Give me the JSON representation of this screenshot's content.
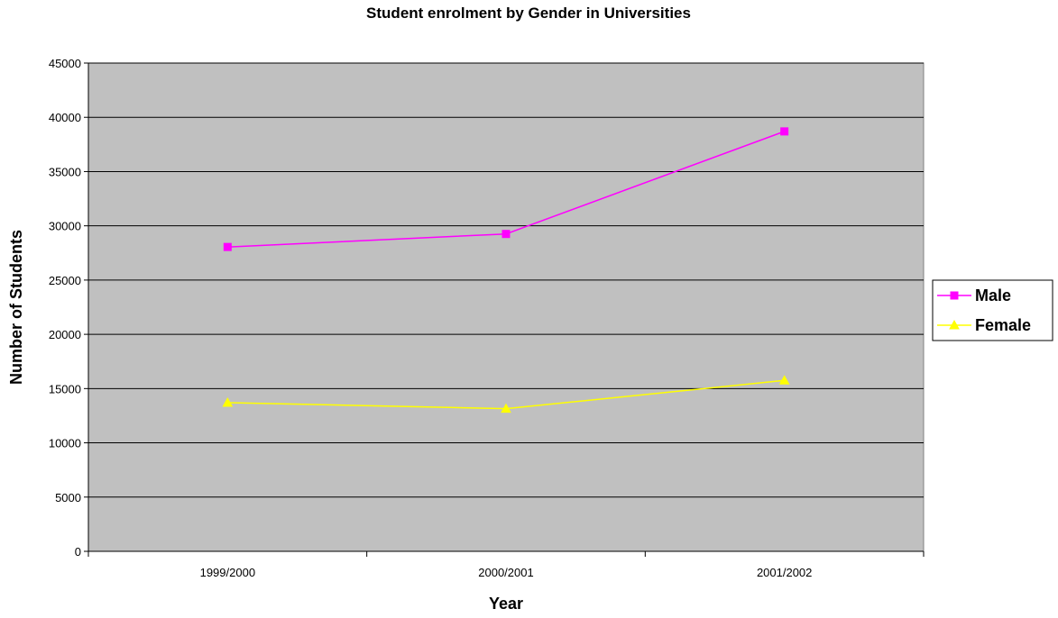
{
  "colors": {
    "plot_background": "#c0c0c0",
    "grid": "#000000",
    "male": "#ff00ff",
    "female": "#ffff00"
  },
  "chart_data": {
    "type": "line",
    "title": "Student enrolment by Gender in Universities",
    "xlabel": "Year",
    "ylabel": "Number of Students",
    "categories": [
      "1999/2000",
      "2000/2001",
      "2001/2002"
    ],
    "ylim": [
      0,
      45000
    ],
    "yticks": [
      "0",
      "5000",
      "10000",
      "15000",
      "20000",
      "25000",
      "30000",
      "35000",
      "40000",
      "45000"
    ],
    "grid": true,
    "legend_position": "right",
    "series": [
      {
        "name": "Male",
        "marker": "square",
        "values": [
          28050,
          29250,
          38700
        ]
      },
      {
        "name": "Female",
        "marker": "triangle",
        "values": [
          13700,
          13150,
          15750
        ]
      }
    ]
  }
}
